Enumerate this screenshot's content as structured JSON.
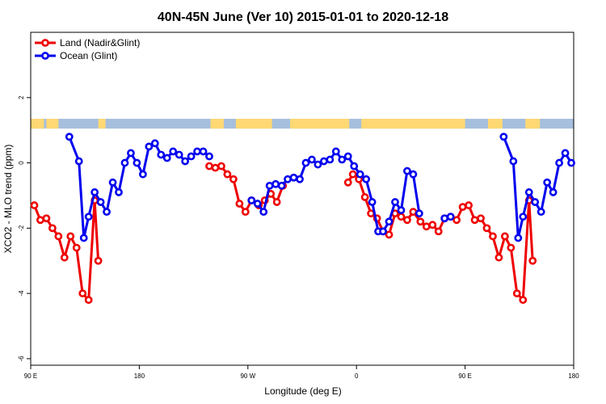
{
  "chart_data": {
    "type": "line",
    "title": "40N-45N June (Ver 10)   2015-01-01 to 2020-12-18",
    "xlabel": "Longitude (deg E)",
    "ylabel": "XCO2 - MLO trend (ppm)",
    "xlim": [
      90,
      540
    ],
    "ylim": [
      -6.2,
      4.0
    ],
    "x_ticks": [
      {
        "value": 90,
        "label": "90 E"
      },
      {
        "value": 180,
        "label": "180"
      },
      {
        "value": 270,
        "label": "90 W"
      },
      {
        "value": 360,
        "label": "0"
      },
      {
        "value": 450,
        "label": "90 E"
      },
      {
        "value": 540,
        "label": "180"
      }
    ],
    "y_ticks": [
      {
        "value": -6,
        "label": "-6"
      },
      {
        "value": -4,
        "label": "-4"
      },
      {
        "value": -2,
        "label": "-2"
      },
      {
        "value": 0,
        "label": "0"
      },
      {
        "value": 2,
        "label": "2"
      }
    ],
    "legend_position": "top-left",
    "grid": false,
    "land_ocean_strip": {
      "y_range": [
        1.05,
        1.35
      ],
      "ocean_color": "#a5bfdd",
      "land_color": "#ffd873",
      "land_segments": [
        [
          90,
          101
        ],
        [
          103,
          113
        ],
        [
          146,
          152
        ],
        [
          239,
          250
        ],
        [
          260,
          290
        ],
        [
          305,
          354
        ],
        [
          364,
          450
        ],
        [
          469,
          481
        ],
        [
          500,
          512
        ]
      ]
    },
    "series": [
      {
        "name": "Land (Nadir&Glint)",
        "color": "#ee0000",
        "segments": [
          [
            [
              93,
              -1.3
            ],
            [
              98,
              -1.75
            ],
            [
              103,
              -1.7
            ],
            [
              108,
              -2.0
            ],
            [
              113,
              -2.25
            ],
            [
              118,
              -2.9
            ],
            [
              123,
              -2.25
            ],
            [
              128,
              -2.6
            ],
            [
              133,
              -4.0
            ],
            [
              138,
              -4.2
            ],
            [
              143,
              -1.15
            ],
            [
              146,
              -3.0
            ]
          ],
          [
            [
              238,
              -0.1
            ],
            [
              243,
              -0.15
            ],
            [
              248,
              -0.1
            ],
            [
              253,
              -0.35
            ],
            [
              258,
              -0.5
            ],
            [
              263,
              -1.25
            ],
            [
              268,
              -1.5
            ],
            [
              273,
              -1.15
            ],
            [
              279,
              -1.3
            ],
            [
              284,
              -1.15
            ],
            [
              289,
              -0.95
            ],
            [
              294,
              -1.2
            ],
            [
              299,
              -0.7
            ]
          ],
          [
            [
              353,
              -0.6
            ],
            [
              357,
              -0.35
            ],
            [
              362,
              -0.5
            ],
            [
              367,
              -1.05
            ],
            [
              372,
              -1.55
            ],
            [
              377,
              -1.7
            ],
            [
              382,
              -2.1
            ],
            [
              387,
              -2.2
            ],
            [
              392,
              -1.55
            ],
            [
              397,
              -1.65
            ],
            [
              402,
              -1.75
            ],
            [
              407,
              -1.5
            ],
            [
              413,
              -1.8
            ],
            [
              418,
              -1.95
            ],
            [
              423,
              -1.9
            ],
            [
              428,
              -2.1
            ],
            [
              433,
              -1.7
            ],
            [
              438,
              -1.65
            ],
            [
              443,
              -1.75
            ],
            [
              448,
              -1.35
            ],
            [
              453,
              -1.3
            ],
            [
              458,
              -1.75
            ],
            [
              463,
              -1.7
            ],
            [
              468,
              -2.0
            ],
            [
              473,
              -2.25
            ],
            [
              478,
              -2.9
            ],
            [
              483,
              -2.25
            ],
            [
              488,
              -2.6
            ],
            [
              493,
              -4.0
            ],
            [
              498,
              -4.2
            ],
            [
              503,
              -1.15
            ],
            [
              506,
              -3.0
            ]
          ]
        ]
      },
      {
        "name": "Ocean (Glint)",
        "color": "#0000ee",
        "segments": [
          [
            [
              122,
              0.8
            ],
            [
              130,
              0.05
            ],
            [
              134,
              -2.3
            ],
            [
              138,
              -1.65
            ],
            [
              143,
              -0.9
            ],
            [
              148,
              -1.2
            ],
            [
              153,
              -1.5
            ],
            [
              158,
              -0.6
            ],
            [
              163,
              -0.9
            ],
            [
              168,
              0.0
            ],
            [
              173,
              0.3
            ],
            [
              178,
              0.0
            ],
            [
              183,
              -0.35
            ],
            [
              188,
              0.5
            ],
            [
              193,
              0.6
            ],
            [
              198,
              0.25
            ],
            [
              203,
              0.15
            ],
            [
              208,
              0.35
            ],
            [
              213,
              0.25
            ],
            [
              218,
              0.05
            ],
            [
              223,
              0.2
            ],
            [
              228,
              0.35
            ],
            [
              233,
              0.35
            ],
            [
              238,
              0.2
            ]
          ],
          [
            [
              273,
              -1.15
            ],
            [
              278,
              -1.25
            ],
            [
              283,
              -1.5
            ],
            [
              288,
              -0.7
            ],
            [
              293,
              -0.65
            ],
            [
              298,
              -0.7
            ],
            [
              303,
              -0.5
            ],
            [
              308,
              -0.45
            ],
            [
              313,
              -0.5
            ],
            [
              318,
              0.0
            ],
            [
              323,
              0.1
            ],
            [
              328,
              -0.05
            ],
            [
              333,
              0.05
            ],
            [
              338,
              0.1
            ],
            [
              343,
              0.35
            ],
            [
              348,
              0.1
            ],
            [
              353,
              0.2
            ],
            [
              358,
              -0.1
            ],
            [
              363,
              -0.35
            ],
            [
              368,
              -0.5
            ],
            [
              373,
              -1.2
            ],
            [
              378,
              -2.1
            ]
          ],
          [
            [
              382,
              -2.1
            ],
            [
              387,
              -1.8
            ],
            [
              392,
              -1.2
            ],
            [
              397,
              -1.45
            ],
            [
              402,
              -0.25
            ],
            [
              407,
              -0.35
            ],
            [
              412,
              -1.55
            ]
          ],
          [
            [
              433,
              -1.7
            ],
            [
              438,
              -1.65
            ]
          ],
          [
            [
              482,
              0.8
            ],
            [
              490,
              0.05
            ],
            [
              494,
              -2.3
            ],
            [
              498,
              -1.65
            ],
            [
              503,
              -0.9
            ],
            [
              508,
              -1.2
            ],
            [
              513,
              -1.5
            ],
            [
              518,
              -0.6
            ],
            [
              523,
              -0.9
            ],
            [
              528,
              0.0
            ],
            [
              533,
              0.3
            ],
            [
              538,
              0.0
            ]
          ]
        ]
      }
    ]
  }
}
